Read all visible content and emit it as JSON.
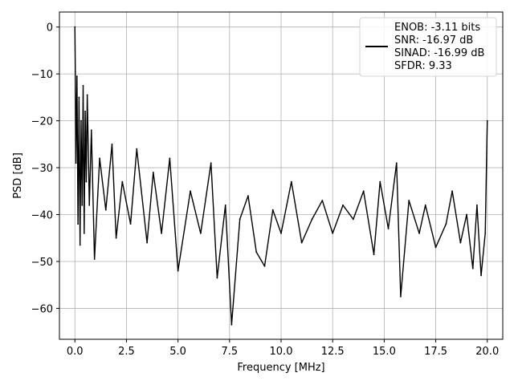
{
  "chart_data": {
    "type": "line",
    "xlabel": "Frequency [MHz]",
    "ylabel": "PSD [dB]",
    "xlim": [
      -0.75,
      20.75
    ],
    "ylim": [
      -66.6,
      3.2
    ],
    "grid": true,
    "xticks": [
      0.0,
      2.5,
      5.0,
      7.5,
      10.0,
      12.5,
      15.0,
      17.5,
      20.0
    ],
    "xtick_labels": [
      "0.0",
      "2.5",
      "5.0",
      "7.5",
      "10.0",
      "12.5",
      "15.0",
      "17.5",
      "20.0"
    ],
    "yticks": [
      0,
      -10,
      -20,
      -30,
      -40,
      -50,
      -60
    ],
    "ytick_labels": [
      "0",
      "−10",
      "−20",
      "−30",
      "−40",
      "−50",
      "−60"
    ],
    "legend_position": "top-right",
    "legend_entries": [
      "ENOB: -3.11 bits",
      "SNR: -16.97 dB",
      "SINAD: -16.99 dB",
      "SFDR: 9.33"
    ],
    "series": [
      {
        "color": "#000000",
        "x": [
          0,
          0.02,
          0.05,
          0.1,
          0.15,
          0.2,
          0.25,
          0.3,
          0.35,
          0.4,
          0.45,
          0.5,
          0.55,
          0.6,
          0.7,
          0.8,
          0.95,
          1.2,
          1.5,
          1.8,
          2.0,
          2.3,
          2.7,
          3.0,
          3.5,
          3.8,
          4.2,
          4.6,
          5.0,
          5.6,
          6.1,
          6.6,
          6.9,
          7.3,
          7.6,
          8.0,
          8.4,
          8.8,
          9.2,
          9.6,
          10.0,
          10.5,
          11.0,
          11.5,
          12.0,
          12.5,
          13.0,
          13.5,
          14.0,
          14.5,
          14.8,
          15.2,
          15.6,
          15.8,
          16.2,
          16.7,
          17.0,
          17.5,
          18.0,
          18.3,
          18.7,
          19.0,
          19.3,
          19.5,
          19.7,
          19.9,
          20.0
        ],
        "y": [
          0,
          -9.5,
          -29,
          -10.5,
          -42,
          -15,
          -46.5,
          -20,
          -38,
          -12.5,
          -44,
          -18,
          -33,
          -14.5,
          -38,
          -22,
          -49.5,
          -28,
          -39,
          -25,
          -45,
          -33,
          -42,
          -26,
          -46,
          -31,
          -44,
          -28,
          -52,
          -35,
          -44,
          -29,
          -53.5,
          -38,
          -63.5,
          -41,
          -36,
          -48,
          -51,
          -39,
          -44,
          -33,
          -46,
          -41,
          -37,
          -44,
          -38,
          -41,
          -35,
          -48.5,
          -33,
          -43,
          -29,
          -57.5,
          -37,
          -44,
          -38,
          -47,
          -42,
          -35,
          -46,
          -40,
          -51.5,
          -38,
          -53,
          -44,
          -20
        ]
      }
    ]
  }
}
